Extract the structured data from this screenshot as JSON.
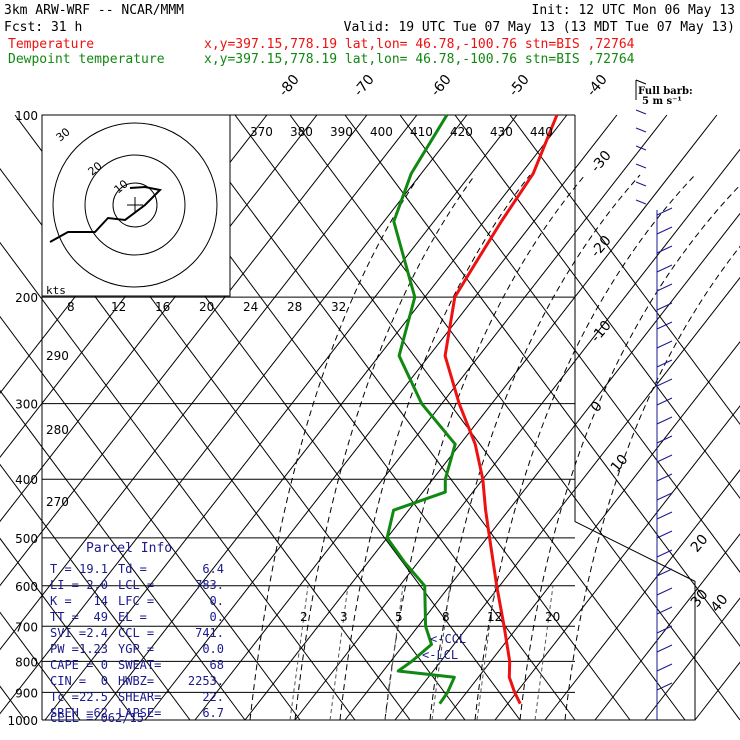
{
  "header": {
    "line1_left": "3km ARW-WRF -- NCAR/MMM",
    "line1_right": "Init: 12 UTC Mon 06 May 13",
    "line2_left": "Fcst:    31 h",
    "line2_right": "Valid: 19 UTC Tue 07 May 13 (13 MDT Tue 07 May 13)",
    "temp_label": "Temperature",
    "dew_label": "Dewpoint temperature",
    "location": "x,y=397.15,778.19   lat,lon= 46.78,-100.76   stn=BIS ,72764",
    "barb_label_1": "Full barb:",
    "barb_label_2": "5 m s⁻¹"
  },
  "colors": {
    "temperature": "#ee1111",
    "dewpoint": "#118811",
    "parcel_text": "#1a1a8c",
    "wind": "#1a1a8c",
    "hodograph": "#000000"
  },
  "chart_data": {
    "type": "line",
    "kind": "skew-T log-P sounding",
    "yaxis_pressure_hPa": [
      100,
      200,
      300,
      400,
      500,
      600,
      700,
      800,
      900,
      1000
    ],
    "isotherm_labels_C": [
      "-80",
      "-70",
      "-60",
      "-50",
      "-40",
      "-30",
      "-20",
      "-10",
      "0",
      "10",
      "20",
      "30",
      "40"
    ],
    "theta_e_labels_K": [
      "370",
      "380",
      "390",
      "400",
      "410",
      "420",
      "430",
      "440"
    ],
    "theta_labels_K": [
      "290",
      "280",
      "270"
    ],
    "mixing_ratio_labels": [
      "2",
      "3",
      "5",
      "8",
      "12",
      "20"
    ],
    "temperature_C": [
      {
        "p": 940,
        "t": 22.5
      },
      {
        "p": 900,
        "t": 19.6
      },
      {
        "p": 850,
        "t": 16.2
      },
      {
        "p": 800,
        "t": 13.8
      },
      {
        "p": 700,
        "t": 7.2
      },
      {
        "p": 600,
        "t": -0.6
      },
      {
        "p": 500,
        "t": -9.5
      },
      {
        "p": 450,
        "t": -14.6
      },
      {
        "p": 400,
        "t": -20.0
      },
      {
        "p": 350,
        "t": -27.0
      },
      {
        "p": 300,
        "t": -36.5
      },
      {
        "p": 250,
        "t": -46.8
      },
      {
        "p": 200,
        "t": -54.0
      },
      {
        "p": 175,
        "t": -55.2
      },
      {
        "p": 150,
        "t": -56.5
      },
      {
        "p": 125,
        "t": -57.6
      },
      {
        "p": 100,
        "t": -62.0
      }
    ],
    "dewpoint_C": [
      {
        "p": 940,
        "t": 6.4
      },
      {
        "p": 900,
        "t": 6.2
      },
      {
        "p": 850,
        "t": 5.2
      },
      {
        "p": 830,
        "t": -7.0
      },
      {
        "p": 800,
        "t": -5.8
      },
      {
        "p": 750,
        "t": -4.5
      },
      {
        "p": 700,
        "t": -8.5
      },
      {
        "p": 600,
        "t": -15.0
      },
      {
        "p": 550,
        "t": -22.5
      },
      {
        "p": 500,
        "t": -30.0
      },
      {
        "p": 450,
        "t": -33.0
      },
      {
        "p": 420,
        "t": -25.5
      },
      {
        "p": 400,
        "t": -27.5
      },
      {
        "p": 350,
        "t": -31.0
      },
      {
        "p": 300,
        "t": -44.0
      },
      {
        "p": 250,
        "t": -56.0
      },
      {
        "p": 200,
        "t": -62.0
      },
      {
        "p": 150,
        "t": -78.0
      },
      {
        "p": 125,
        "t": -82.0
      },
      {
        "p": 100,
        "t": -84.0
      }
    ],
    "parcel": {
      "title": "Parcel Info",
      "rows": [
        [
          "T  =",
          "19.1",
          "Td =",
          "6.4"
        ],
        [
          "LI =",
          "2.0",
          "LCL =",
          "783."
        ],
        [
          "K  =",
          "14",
          "LFC =",
          "0."
        ],
        [
          "TT =",
          "49",
          "EL  =",
          "0."
        ],
        [
          "SVI =",
          "2.4",
          "CCL =",
          "741."
        ],
        [
          "PW =",
          "1.23",
          "YGP =",
          "0.0"
        ],
        [
          "CAPE =",
          "0",
          "SWEAT=",
          "68"
        ],
        [
          "CIN =",
          "0",
          "HWBZ=",
          "2253."
        ],
        [
          "Tc =",
          "22.5",
          "SHEAR=",
          "22."
        ],
        [
          "SREH =",
          "62",
          "LAPSE=",
          "6.7"
        ]
      ],
      "cell": "CELL = 062/15"
    },
    "annotations": {
      "ccl": "<-CCL",
      "lcl": "<-LCL"
    },
    "hodograph": {
      "axis_label": "kts",
      "speed_labels": [
        "8",
        "12",
        "16",
        "20",
        "24",
        "28",
        "32"
      ],
      "ring_labels": [
        "30",
        "20",
        "10"
      ]
    }
  }
}
